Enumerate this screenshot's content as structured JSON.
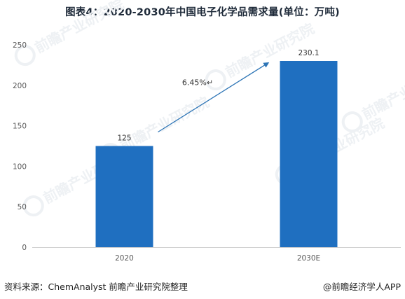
{
  "title": "图表4：2020-2030年中国电子化学品需求量(单位：万吨)",
  "chart_data": {
    "type": "bar",
    "categories": [
      "2020",
      "2030E"
    ],
    "values": [
      125,
      230.1
    ],
    "value_labels": [
      "125",
      "230.1"
    ],
    "ylim": [
      0,
      250
    ],
    "yticks": [
      0,
      50,
      100,
      150,
      200,
      250
    ],
    "grid": false,
    "bar_color": "#1f6fc0",
    "annotation": {
      "text": "6.45%↵",
      "arrow_color": "#2e75b6"
    }
  },
  "watermark": "前瞻产业研究院",
  "footer": {
    "source": "资料来源：ChemAnalyst 前瞻产业研究院整理",
    "brand": "@前瞻经济学人APP"
  }
}
